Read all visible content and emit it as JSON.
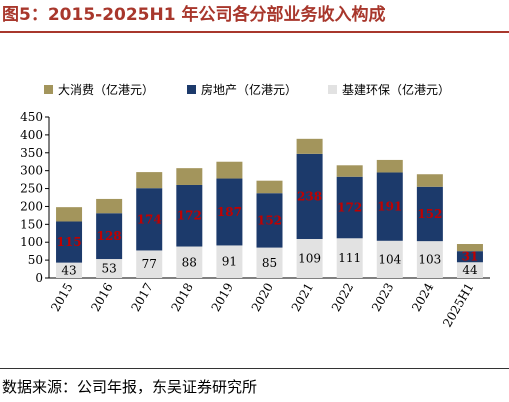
{
  "title": "图5：2015-2025H1 年公司各分部业务收入构成",
  "source": "数据来源：公司年报，东吴证券研究所",
  "colors": {
    "title": "#a8372c",
    "consumer": "#a3955c",
    "realestate": "#1c3a6b",
    "infra": "#e2e2e2",
    "label_in_bar": "#c00000",
    "axis": "#000000"
  },
  "chart_data": {
    "type": "bar",
    "stacked": true,
    "categories": [
      "2015",
      "2016",
      "2017",
      "2018",
      "2019",
      "2020",
      "2021",
      "2022",
      "2023",
      "2024",
      "2025H1"
    ],
    "series": [
      {
        "name": "基建环保（亿港元）",
        "values": [
          43,
          53,
          77,
          88,
          91,
          85,
          109,
          111,
          104,
          103,
          44
        ]
      },
      {
        "name": "房地产（亿港元）",
        "values": [
          115,
          128,
          174,
          172,
          187,
          152,
          238,
          172,
          191,
          152,
          31
        ]
      },
      {
        "name": "大消费（亿港元）",
        "values": [
          40,
          40,
          45,
          47,
          47,
          35,
          42,
          32,
          35,
          35,
          20
        ]
      }
    ],
    "data_labels": {
      "基建环保（亿港元）": [
        "43",
        "53",
        "77",
        "88",
        "91",
        "85",
        "109",
        "111",
        "104",
        "103",
        "44"
      ],
      "房地产（亿港元）": [
        "115",
        "128",
        "174",
        "172",
        "187",
        "152",
        "238",
        "172",
        "191",
        "152",
        "31"
      ]
    },
    "legend_order": [
      "大消费（亿港元）",
      "房地产（亿港元）",
      "基建环保（亿港元）"
    ],
    "yticks": [
      0,
      50,
      100,
      150,
      200,
      250,
      300,
      350,
      400,
      450
    ],
    "ylim": [
      0,
      450
    ],
    "xlabel": "",
    "ylabel": "",
    "grid": false,
    "legend_position": "top"
  }
}
